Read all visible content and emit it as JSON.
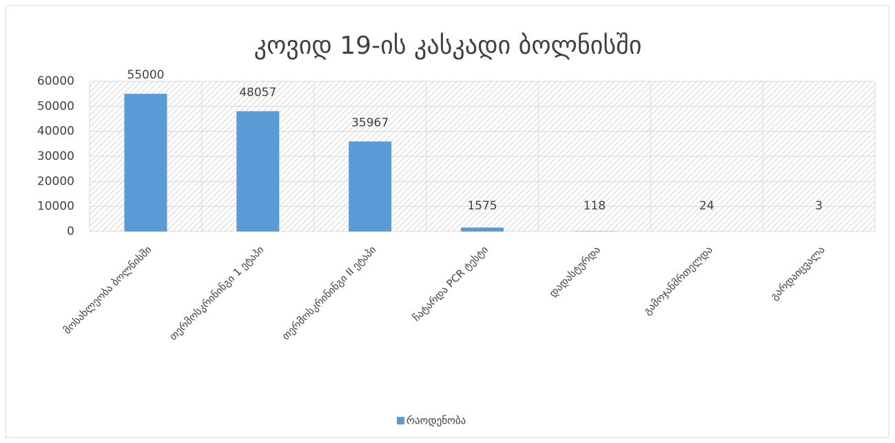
{
  "chart_data": {
    "type": "bar",
    "title": "კოვიდ 19-ის კასკადი ბოლნისში",
    "categories": [
      "მოსახლეობა ბოლნისში",
      "თერმოსკრინინგი 1 ეტაპი",
      "თერმოსკრინინგი II ეტაპი",
      "ჩატარდა PCR ტესტი",
      "დადასტურდა",
      "გამოჯანმრთელდა",
      "გარდაიცვალა"
    ],
    "series": [
      {
        "name": "რაოდენობა",
        "color": "#5b9bd5",
        "values": [
          55000,
          48057,
          35967,
          1575,
          118,
          24,
          3
        ]
      }
    ],
    "ylim": [
      0,
      60000
    ],
    "yticks": [
      0,
      10000,
      20000,
      30000,
      40000,
      50000,
      60000
    ],
    "grid": true,
    "legend": "bottom"
  }
}
